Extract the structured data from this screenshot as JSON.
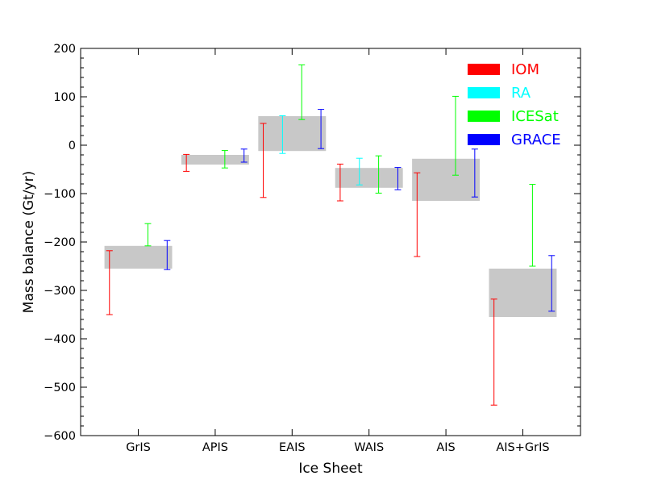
{
  "chart_data": {
    "type": "bar",
    "xlabel": "Ice Sheet",
    "ylabel": "Mass balance (Gt/yr)",
    "ylim": [
      -600,
      200
    ],
    "y_ticks": [
      200,
      100,
      0,
      -100,
      -200,
      -300,
      -400,
      -500,
      -600
    ],
    "y_tick_labels": [
      "200",
      "100",
      "0",
      "−100",
      "−200",
      "−300",
      "−400",
      "−500",
      "−600"
    ],
    "categories": [
      "GrIS",
      "APIS",
      "EAIS",
      "WAIS",
      "AIS",
      "AIS+GrIS"
    ],
    "reconciled_range": {
      "color": "#c8c8c8",
      "low": [
        -255,
        -40,
        -12,
        -88,
        -115,
        -355
      ],
      "high": [
        -208,
        -20,
        60,
        -47,
        -28,
        -255
      ]
    },
    "series": [
      {
        "name": "IOM",
        "color": "#ff0000",
        "low": [
          -350,
          -54,
          -108,
          -115,
          -230,
          -537
        ],
        "high": [
          -218,
          -19,
          45,
          -39,
          -57,
          -318
        ]
      },
      {
        "name": "RA",
        "color": "#00ffff",
        "low": [
          null,
          null,
          -17,
          -82,
          null,
          null
        ],
        "high": [
          null,
          null,
          61,
          -27,
          null,
          null
        ]
      },
      {
        "name": "ICESat",
        "color": "#00ff00",
        "low": [
          -208,
          -47,
          53,
          -99,
          -62,
          -250
        ],
        "high": [
          -162,
          -11,
          166,
          -22,
          101,
          -81
        ]
      },
      {
        "name": "GRACE",
        "color": "#0000ff",
        "low": [
          -257,
          -35,
          -7,
          -92,
          -107,
          -343
        ],
        "high": [
          -197,
          -8,
          74,
          -46,
          -8,
          -228
        ]
      }
    ],
    "legend_position": "top-right",
    "grid": false
  }
}
